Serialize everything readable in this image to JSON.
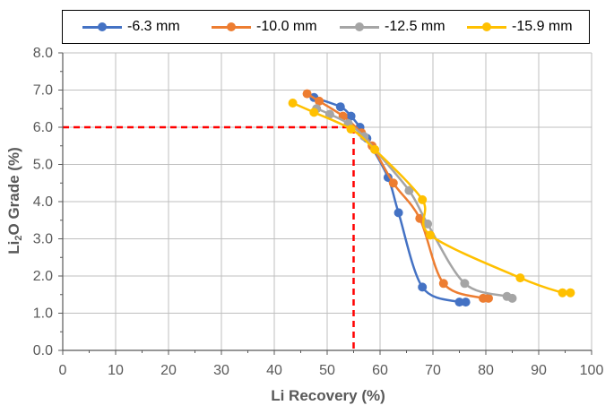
{
  "chart_data": {
    "type": "line",
    "title": "",
    "xlabel": "Li Recovery (%)",
    "ylabel_parts": [
      "Li",
      "2",
      "O Grade (%)"
    ],
    "xlim": [
      0,
      100
    ],
    "ylim": [
      0.0,
      8.0
    ],
    "x_ticks": [
      0,
      10,
      20,
      30,
      40,
      50,
      60,
      70,
      80,
      90,
      100
    ],
    "x_tick_labels": [
      "0",
      "10",
      "20",
      "30",
      "40",
      "50",
      "60",
      "70",
      "80",
      "90",
      "100"
    ],
    "y_ticks": [
      0,
      1,
      2,
      3,
      4,
      5,
      6,
      7,
      8
    ],
    "y_tick_labels": [
      "0.0",
      "1.0",
      "2.0",
      "3.0",
      "4.0",
      "5.0",
      "6.0",
      "7.0",
      "8.0"
    ],
    "grid": true,
    "legend_position": "top",
    "series": [
      {
        "name": "-6.3 mm",
        "color": "#4472C4",
        "x": [
          47.5,
          52.5,
          54.5,
          56.2,
          57.5,
          61.5,
          63.5,
          68.0,
          75.0,
          76.2
        ],
        "y": [
          6.8,
          6.55,
          6.3,
          6.0,
          5.7,
          4.65,
          3.7,
          1.7,
          1.3,
          1.3
        ]
      },
      {
        "name": "-10.0 mm",
        "color": "#ED7D31",
        "x": [
          46.2,
          48.5,
          53.0,
          56.5,
          58.5,
          62.5,
          67.5,
          72.0,
          79.5,
          80.5
        ],
        "y": [
          6.9,
          6.7,
          6.3,
          5.85,
          5.5,
          4.5,
          3.55,
          1.8,
          1.4,
          1.4
        ]
      },
      {
        "name": "-12.5 mm",
        "color": "#A5A5A5",
        "x": [
          48.0,
          50.5,
          54.0,
          57.0,
          59.0,
          65.5,
          69.0,
          76.0,
          84.0,
          85.0
        ],
        "y": [
          6.5,
          6.35,
          6.1,
          5.75,
          5.4,
          4.3,
          3.4,
          1.8,
          1.45,
          1.4
        ]
      },
      {
        "name": "-15.9 mm",
        "color": "#FFC000",
        "x": [
          43.5,
          47.5,
          54.5,
          59.0,
          68.0,
          69.5,
          86.5,
          94.5,
          96.0
        ],
        "y": [
          6.65,
          6.4,
          5.95,
          5.4,
          4.05,
          3.1,
          1.95,
          1.55,
          1.55
        ]
      }
    ],
    "annotations": [
      {
        "type": "dashed-guide",
        "color": "#FF0000",
        "x": 55.0,
        "y": 6.0
      }
    ]
  }
}
